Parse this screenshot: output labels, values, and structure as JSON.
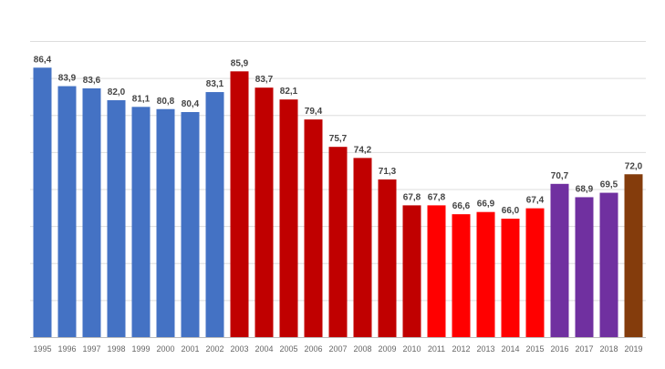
{
  "chart_data": {
    "type": "bar",
    "title": "",
    "xlabel": "",
    "ylabel": "",
    "ylim": [
      50,
      90
    ],
    "grid": true,
    "categories": [
      "1995",
      "1996",
      "1997",
      "1998",
      "1999",
      "2000",
      "2001",
      "2002",
      "2003",
      "2004",
      "2005",
      "2006",
      "2007",
      "2008",
      "2009",
      "2010",
      "2011",
      "2012",
      "2013",
      "2014",
      "2015",
      "2016",
      "2017",
      "2018",
      "2019"
    ],
    "values": [
      86.4,
      83.9,
      83.6,
      82.0,
      81.1,
      80.8,
      80.4,
      83.1,
      85.9,
      83.7,
      82.1,
      79.4,
      75.7,
      74.2,
      71.3,
      67.8,
      67.8,
      66.6,
      66.9,
      66.0,
      67.4,
      70.7,
      68.9,
      69.5,
      72.0
    ],
    "value_labels": [
      "86,4",
      "83,9",
      "83,6",
      "82,0",
      "81,1",
      "80,8",
      "80,4",
      "83,1",
      "85,9",
      "83,7",
      "82,1",
      "79,4",
      "75,7",
      "74,2",
      "71,3",
      "67,8",
      "67,8",
      "66,6",
      "66,9",
      "66,0",
      "67,4",
      "70,7",
      "68,9",
      "69,5",
      "72,0"
    ],
    "bar_colors": [
      "#4472C4",
      "#4472C4",
      "#4472C4",
      "#4472C4",
      "#4472C4",
      "#4472C4",
      "#4472C4",
      "#4472C4",
      "#C00000",
      "#C00000",
      "#C00000",
      "#C00000",
      "#C00000",
      "#C00000",
      "#C00000",
      "#C00000",
      "#FF0000",
      "#FF0000",
      "#FF0000",
      "#FF0000",
      "#FF0000",
      "#7030A0",
      "#7030A0",
      "#7030A0",
      "#843C0C"
    ]
  }
}
